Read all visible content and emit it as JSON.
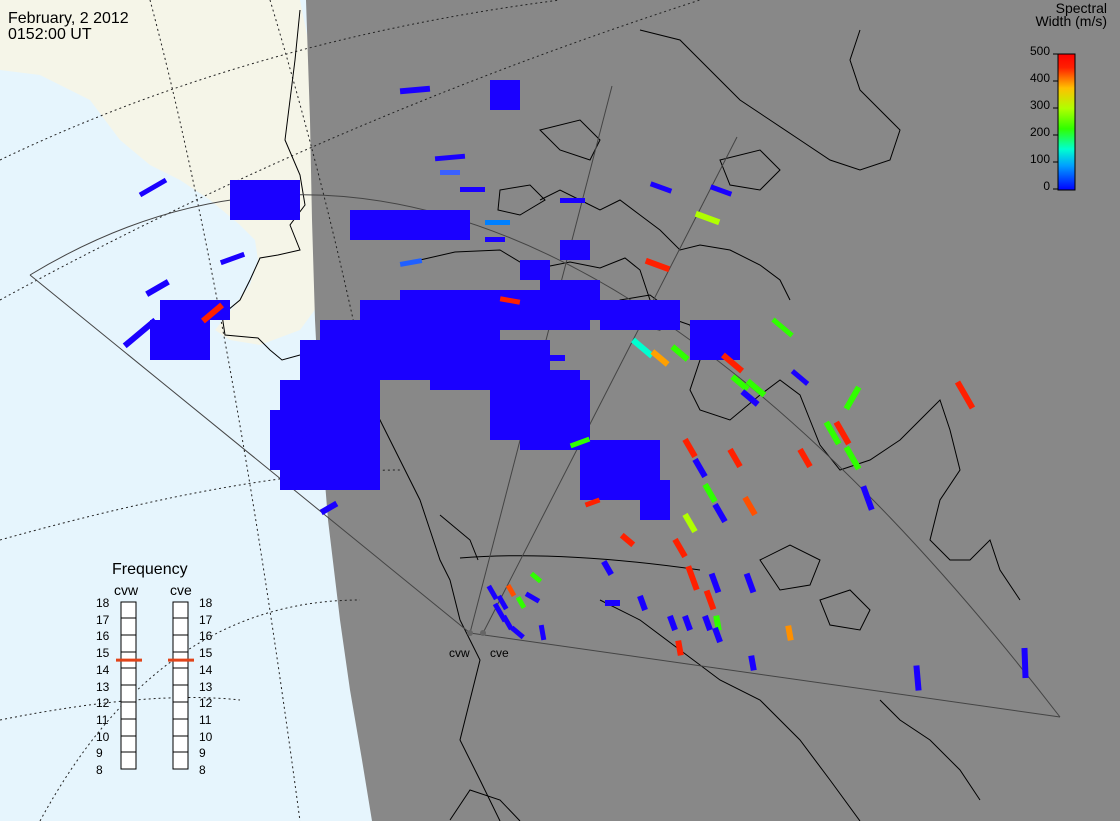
{
  "header": {
    "date": "February, 2 2012",
    "time": "0152:00 UT"
  },
  "colorbar": {
    "title_line1": "Spectral",
    "title_line2": "Width (m/s)",
    "ticks": [
      "500",
      "400",
      "300",
      "200",
      "100",
      "0"
    ]
  },
  "radars": [
    {
      "name": "cvw"
    },
    {
      "name": "cve"
    }
  ],
  "frequency": {
    "title": "Frequency",
    "ticks": [
      "18",
      "17",
      "16",
      "15",
      "14",
      "13",
      "12",
      "11",
      "10",
      "9",
      "8"
    ],
    "cvw_value": 15,
    "cve_value": 15
  },
  "colors": {
    "ocean": "#e6f5fd",
    "land": "#f5f5e8",
    "night": "#888888",
    "marker": "#e0441a"
  },
  "chart_data": {
    "type": "scatter",
    "description_value": "Spectral width",
    "unit": "m/s",
    "vmin": 0,
    "vmax": 500
  }
}
